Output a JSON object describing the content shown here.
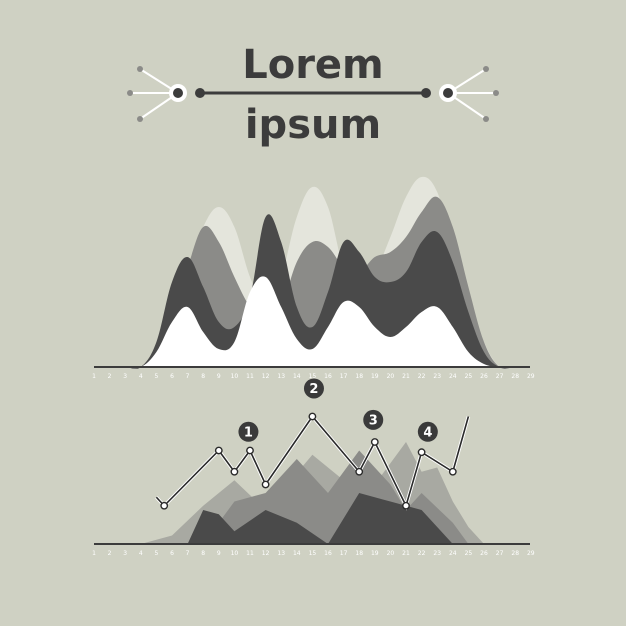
{
  "header": {
    "title_line1": "Lorem",
    "title_line2": "ipsum"
  },
  "colors": {
    "background": "#cfd1c3",
    "dark": "#4a4a4a",
    "mid": "#8b8b88",
    "light": "#e4e5dc",
    "white": "#ffffff",
    "ink": "#3c3c3c"
  },
  "chart_data": [
    {
      "type": "area",
      "x": [
        1,
        2,
        3,
        4,
        5,
        6,
        7,
        8,
        9,
        10,
        11,
        12,
        13,
        14,
        15,
        16,
        17,
        18,
        19,
        20,
        21,
        22,
        23,
        24,
        25,
        26,
        27,
        28,
        29
      ],
      "tick_labels": [
        "1",
        "2",
        "3",
        "4",
        "5",
        "6",
        "7",
        "8",
        "9",
        "10",
        "11",
        "12",
        "13",
        "14",
        "15",
        "16",
        "17",
        "18",
        "19",
        "20",
        "21",
        "22",
        "23",
        "24",
        "25",
        "26",
        "27",
        "28",
        "29"
      ],
      "series": [
        {
          "values": [
            0,
            0,
            0,
            0,
            20,
            55,
            95,
            140,
            160,
            140,
            90,
            60,
            90,
            150,
            180,
            160,
            100,
            85,
            95,
            130,
            170,
            190,
            175,
            120,
            70,
            25,
            0,
            0,
            0
          ]
        },
        {
          "values": [
            0,
            0,
            0,
            0,
            20,
            55,
            100,
            140,
            125,
            90,
            60,
            45,
            60,
            105,
            125,
            120,
            100,
            95,
            110,
            115,
            130,
            155,
            170,
            140,
            80,
            25,
            0,
            0,
            0
          ]
        },
        {
          "values": [
            0,
            0,
            0,
            0,
            25,
            85,
            110,
            80,
            45,
            40,
            70,
            150,
            125,
            60,
            40,
            75,
            125,
            115,
            90,
            85,
            95,
            125,
            135,
            105,
            55,
            15,
            0,
            0,
            0
          ]
        },
        {
          "values": [
            0,
            0,
            0,
            0,
            15,
            45,
            60,
            35,
            18,
            25,
            75,
            90,
            60,
            28,
            18,
            40,
            65,
            60,
            40,
            30,
            40,
            55,
            60,
            40,
            15,
            3,
            0,
            0,
            0
          ]
        }
      ]
    },
    {
      "type": "line",
      "x": [
        1,
        2,
        3,
        4,
        5,
        6,
        7,
        8,
        9,
        10,
        11,
        12,
        13,
        14,
        15,
        16,
        17,
        18,
        19,
        20,
        21,
        22,
        23,
        24,
        25,
        26,
        27,
        28,
        29
      ],
      "tick_labels": [
        "1",
        "2",
        "3",
        "4",
        "5",
        "6",
        "7",
        "8",
        "9",
        "10",
        "11",
        "12",
        "13",
        "14",
        "15",
        "16",
        "17",
        "18",
        "19",
        "20",
        "21",
        "22",
        "23",
        "24",
        "25",
        "26",
        "27",
        "28",
        "29"
      ],
      "line": {
        "x": [
          5,
          5.5,
          9,
          10,
          11,
          12,
          15,
          18,
          19,
          21,
          22,
          24,
          25
        ],
        "values": [
          55,
          45,
          110,
          85,
          110,
          70,
          150,
          85,
          120,
          45,
          108,
          85,
          150
        ]
      },
      "markers_x": [
        5.5,
        9,
        10,
        11,
        12,
        15,
        18,
        19,
        21,
        22,
        24
      ],
      "badges": [
        {
          "label": "1",
          "x": 10.9,
          "y": 132
        },
        {
          "label": "2",
          "x": 15.1,
          "y": 183
        },
        {
          "label": "3",
          "x": 18.9,
          "y": 146
        },
        {
          "label": "4",
          "x": 22.4,
          "y": 132
        }
      ],
      "mountains": [
        {
          "x": [
            4,
            6,
            8,
            10,
            12,
            15,
            17,
            19,
            21,
            22,
            23,
            24,
            25,
            26
          ],
          "values": [
            0,
            10,
            45,
            75,
            40,
            105,
            75,
            70,
            120,
            85,
            90,
            50,
            20,
            0
          ]
        },
        {
          "x": [
            8,
            10,
            12,
            14,
            16,
            18,
            20,
            21,
            22,
            24,
            25
          ],
          "values": [
            0,
            50,
            60,
            100,
            60,
            110,
            70,
            40,
            60,
            25,
            0
          ]
        },
        {
          "x": [
            7,
            8,
            9,
            10,
            12,
            14,
            16,
            18,
            20,
            22,
            24
          ],
          "values": [
            0,
            40,
            35,
            15,
            40,
            25,
            0,
            60,
            50,
            40,
            0
          ]
        }
      ]
    }
  ]
}
